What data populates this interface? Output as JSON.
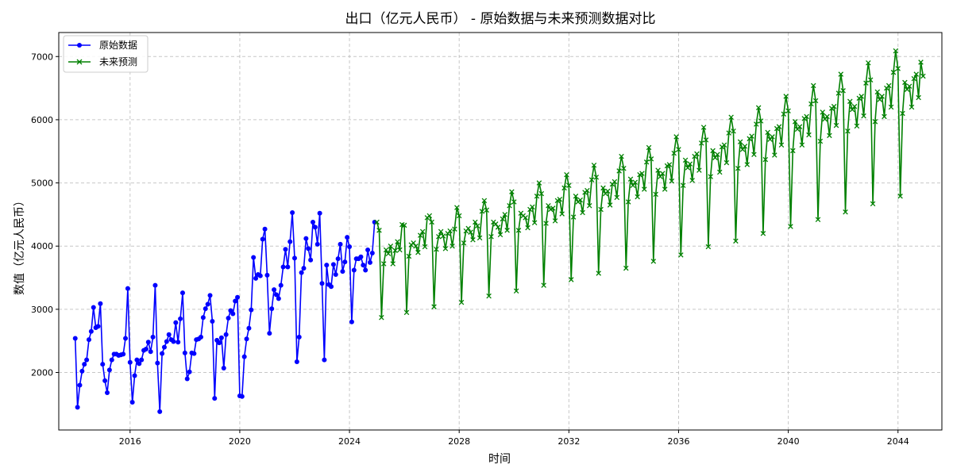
{
  "chart_data": {
    "type": "line",
    "title": "出口（亿元人民币） - 原始数据与未来预测数据对比",
    "xlabel": "时间",
    "ylabel": "数值（亿元人民币）",
    "xlim": [
      2013.4,
      2045.6
    ],
    "ylim": [
      1090,
      7380
    ],
    "xticks": [
      2016,
      2020,
      2024,
      2028,
      2032,
      2036,
      2040,
      2044
    ],
    "yticks": [
      2000,
      3000,
      4000,
      5000,
      6000,
      7000
    ],
    "grid": true,
    "legend_position": "upper-left",
    "series": [
      {
        "name": "原始数据",
        "color": "#0000ff",
        "marker": "circle",
        "x_start": 2014.0,
        "x_step": 0.08333,
        "values": [
          2540,
          1450,
          1800,
          2020,
          2130,
          2200,
          2520,
          2650,
          3030,
          2710,
          2730,
          3090,
          2130,
          1870,
          1680,
          2040,
          2200,
          2290,
          2290,
          2270,
          2280,
          2290,
          2540,
          3330,
          2160,
          1530,
          1950,
          2200,
          2140,
          2200,
          2350,
          2370,
          2480,
          2330,
          2560,
          3380,
          2150,
          1380,
          2300,
          2400,
          2490,
          2600,
          2520,
          2490,
          2790,
          2480,
          2850,
          3260,
          2310,
          1900,
          2010,
          2310,
          2300,
          2520,
          2530,
          2560,
          2870,
          3010,
          3080,
          3220,
          2810,
          1590,
          2510,
          2470,
          2550,
          2070,
          2600,
          2860,
          2980,
          2930,
          3130,
          3190,
          1630,
          1620,
          2250,
          2530,
          2700,
          2990,
          3820,
          3490,
          3550,
          3530,
          4110,
          4270,
          3540,
          2620,
          3010,
          3310,
          3230,
          3170,
          3380,
          3670,
          3950,
          3670,
          4070,
          4530,
          3810,
          2170,
          2560,
          3580,
          3650,
          4120,
          3960,
          3780,
          4380,
          4300,
          4030,
          4520,
          3410,
          2200,
          3700,
          3390,
          3360,
          3710,
          3550,
          3800,
          4030,
          3600,
          3750,
          4140,
          3990,
          2800,
          3620,
          3800,
          3800,
          3830,
          3700,
          3620,
          3940,
          3740,
          3890,
          4380
        ]
      },
      {
        "name": "未来预测",
        "color": "#008000",
        "marker": "x",
        "x_start": 2025.0,
        "x_step": 0.08333,
        "values": [
          4380,
          4250,
          2870,
          3720,
          3940,
          3880,
          4000,
          3720,
          3930,
          4070,
          3940,
          4340,
          4330,
          2950,
          3840,
          4020,
          4050,
          4000,
          3900,
          4170,
          4230,
          3990,
          4450,
          4480,
          4380,
          3040,
          3950,
          4150,
          4230,
          4160,
          3960,
          4200,
          4240,
          4000,
          4270,
          4610,
          4480,
          3110,
          4050,
          4240,
          4280,
          4220,
          4100,
          4380,
          4320,
          4130,
          4550,
          4720,
          4570,
          3210,
          4150,
          4380,
          4350,
          4300,
          4180,
          4430,
          4500,
          4250,
          4640,
          4860,
          4700,
          3290,
          4250,
          4520,
          4480,
          4450,
          4290,
          4580,
          4620,
          4370,
          4790,
          5000,
          4830,
          3380,
          4360,
          4640,
          4580,
          4600,
          4400,
          4720,
          4740,
          4510,
          4920,
          5130,
          4960,
          3470,
          4460,
          4790,
          4700,
          4730,
          4530,
          4850,
          4880,
          4640,
          5050,
          5280,
          5090,
          3570,
          4580,
          4920,
          4830,
          4870,
          4650,
          4980,
          5020,
          4770,
          5190,
          5420,
          5230,
          3650,
          4700,
          5060,
          4960,
          5010,
          4780,
          5130,
          5150,
          4900,
          5330,
          5560,
          5380,
          3760,
          4820,
          5200,
          5100,
          5150,
          4900,
          5270,
          5290,
          5030,
          5470,
          5730,
          5530,
          3860,
          4960,
          5360,
          5240,
          5300,
          5040,
          5420,
          5460,
          5200,
          5630,
          5880,
          5680,
          3990,
          5100,
          5510,
          5400,
          5450,
          5170,
          5570,
          5600,
          5320,
          5790,
          6040,
          5820,
          4080,
          5230,
          5650,
          5530,
          5580,
          5290,
          5700,
          5740,
          5450,
          5930,
          6190,
          5980,
          4200,
          5370,
          5800,
          5690,
          5730,
          5440,
          5860,
          5890,
          5600,
          6090,
          6370,
          6140,
          4310,
          5510,
          5970,
          5850,
          5890,
          5600,
          6020,
          6050,
          5760,
          6250,
          6540,
          6300,
          4420,
          5660,
          6120,
          6010,
          6050,
          5750,
          6180,
          6210,
          5910,
          6420,
          6720,
          6460,
          4540,
          5820,
          6290,
          6160,
          6210,
          5900,
          6340,
          6370,
          6060,
          6580,
          6900,
          6630,
          4670,
          5970,
          6440,
          6320,
          6370,
          6050,
          6500,
          6540,
          6200,
          6750,
          7090,
          6810,
          4790,
          6100,
          6590,
          6480,
          6530,
          6200,
          6650,
          6720,
          6350,
          6910,
          6690
        ]
      }
    ]
  }
}
